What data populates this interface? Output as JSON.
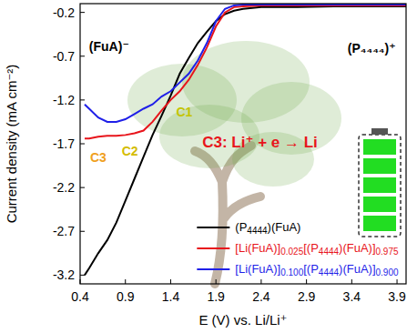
{
  "chart_data": {
    "type": "line",
    "x_label": "E (V) vs. Li/Li⁺",
    "y_label": "Current density (mA cm⁻²)",
    "xlim": [
      0.4,
      4.0
    ],
    "xticks": [
      0.4,
      0.9,
      1.4,
      1.9,
      2.4,
      2.9,
      3.4,
      3.9
    ],
    "ylim": [
      -3.3,
      -0.1
    ],
    "yticks": [
      -0.2,
      -0.7,
      -1.2,
      -1.7,
      -2.2,
      -2.7,
      -3.2
    ],
    "grid": false,
    "legend": "lower right",
    "series": [
      {
        "name": "(P4444)(FuA)",
        "color": "#000000",
        "x": [
          0.45,
          0.5,
          0.6,
          0.7,
          0.8,
          0.9,
          1.0,
          1.1,
          1.2,
          1.3,
          1.4,
          1.5,
          1.6,
          1.7,
          1.8,
          1.9,
          2.0,
          2.1,
          2.2,
          2.4,
          2.8,
          3.2,
          3.6,
          4.0
        ],
        "values": [
          -3.2,
          -3.12,
          -2.95,
          -2.8,
          -2.6,
          -2.35,
          -2.1,
          -1.85,
          -1.6,
          -1.38,
          -1.15,
          -0.9,
          -0.72,
          -0.55,
          -0.42,
          -0.3,
          -0.22,
          -0.18,
          -0.16,
          -0.14,
          -0.14,
          -0.13,
          -0.13,
          -0.13
        ]
      },
      {
        "name": "[Li(FuA)]0.025[(P4444)(FuA)]0.975",
        "color": "#e8141b",
        "x": [
          0.45,
          0.5,
          0.6,
          0.7,
          0.8,
          0.9,
          1.0,
          1.1,
          1.2,
          1.3,
          1.4,
          1.5,
          1.6,
          1.7,
          1.8,
          1.9,
          2.0,
          2.1,
          2.2,
          2.4,
          2.8,
          3.2,
          3.6,
          4.0
        ],
        "values": [
          -1.64,
          -1.64,
          -1.62,
          -1.61,
          -1.61,
          -1.6,
          -1.58,
          -1.55,
          -1.45,
          -1.32,
          -1.2,
          -1.1,
          -0.97,
          -0.8,
          -0.6,
          -0.36,
          -0.2,
          -0.14,
          -0.13,
          -0.12,
          -0.12,
          -0.12,
          -0.12,
          -0.12
        ]
      },
      {
        "name": "[Li(FuA)]0.100[(P4444)(FuA)]0.900",
        "color": "#1f1fe8",
        "x": [
          0.45,
          0.5,
          0.6,
          0.7,
          0.8,
          0.9,
          1.0,
          1.1,
          1.2,
          1.3,
          1.4,
          1.5,
          1.6,
          1.7,
          1.8,
          1.9,
          2.0,
          2.1,
          2.2,
          2.4,
          2.8,
          3.2,
          3.6,
          4.0
        ],
        "values": [
          -1.25,
          -1.3,
          -1.4,
          -1.45,
          -1.45,
          -1.42,
          -1.36,
          -1.3,
          -1.25,
          -1.16,
          -1.1,
          -1.0,
          -0.9,
          -0.75,
          -0.55,
          -0.3,
          -0.16,
          -0.12,
          -0.11,
          -0.11,
          -0.11,
          -0.11,
          -0.11,
          -0.11
        ]
      }
    ],
    "annotations": [
      {
        "text": "C1",
        "x": 1.55,
        "y": -1.35,
        "color": "#c4c400"
      },
      {
        "text": "C2",
        "x": 0.95,
        "y": -1.8,
        "color": "#d4bc00"
      },
      {
        "text": "C3",
        "x": 0.6,
        "y": -1.87,
        "color": "#f0a020"
      },
      {
        "text": "C3: Li⁺ + e → Li",
        "x": 1.75,
        "y": -1.7,
        "color": "#e8141b"
      },
      {
        "text": "(FuA)⁻",
        "x": 0.72,
        "y": -0.6,
        "color": "#000000"
      },
      {
        "text": "(P₄₄₄₄)⁺",
        "x": 3.62,
        "y": -0.62,
        "color": "#000000"
      }
    ]
  }
}
